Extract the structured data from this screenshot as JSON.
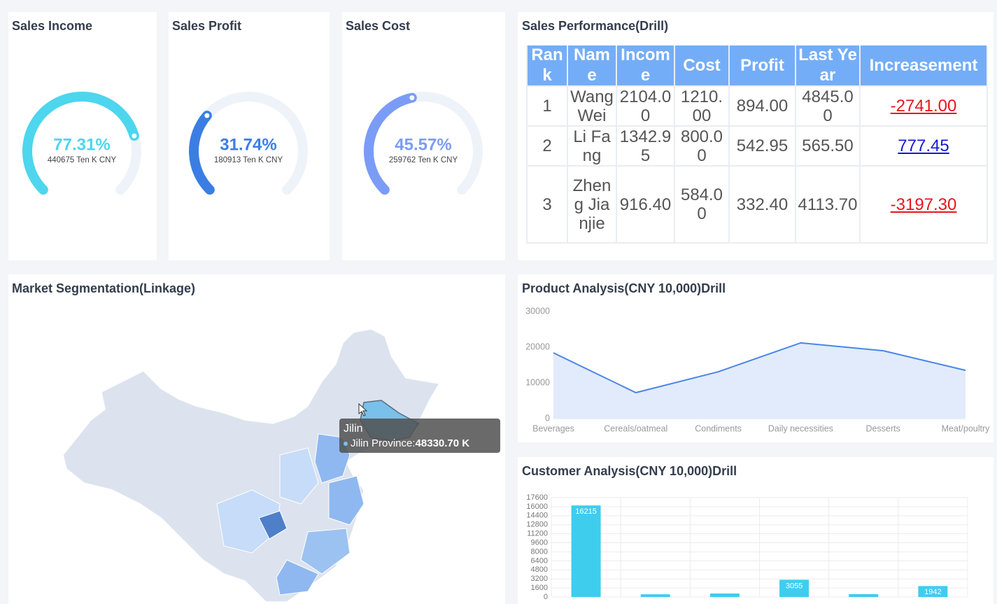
{
  "chart_data": [
    {
      "type": "gauge",
      "title": "Sales Income",
      "value": 77.31,
      "value_label": "77.31%",
      "caption": "440675 Ten K CNY",
      "color": "#4dd6ee",
      "ylim": [
        0,
        100
      ]
    },
    {
      "type": "gauge",
      "title": "Sales Profit",
      "value": 31.74,
      "value_label": "31.74%",
      "caption": "180913 Ten K CNY",
      "color": "#3b7ee3",
      "ylim": [
        0,
        100
      ]
    },
    {
      "type": "gauge",
      "title": "Sales Cost",
      "value": 45.57,
      "value_label": "45.57%",
      "caption": "259762 Ten K CNY",
      "color": "#7b9cf6",
      "ylim": [
        0,
        100
      ]
    },
    {
      "type": "line",
      "title": "Product Analysis(CNY 10,000)Drill",
      "categories": [
        "Beverages",
        "Cereals/oatmeal",
        "Condiments",
        "Daily necessities",
        "Desserts",
        "Meat/poultry"
      ],
      "values": [
        18400,
        7250,
        13100,
        21200,
        19000,
        13500
      ],
      "color": "#4a86e8",
      "area_color": "#e2ebfb",
      "ylim": [
        0,
        30000
      ],
      "yticks": [
        0,
        10000,
        20000,
        30000
      ]
    },
    {
      "type": "bar",
      "title": "Customer Analysis(CNY 10,000)Drill",
      "values": [
        16215,
        480,
        620,
        3055,
        510,
        1942
      ],
      "show_labels": [
        true,
        false,
        false,
        true,
        false,
        true
      ],
      "color": "#3fcdee",
      "ylim": [
        0,
        17600
      ],
      "yticks": [
        0,
        1600,
        3200,
        4800,
        6400,
        8000,
        9600,
        11200,
        12800,
        14400,
        16000,
        17600
      ],
      "grid": true
    }
  ],
  "table": {
    "title": "Sales Performance(Drill)",
    "header": [
      "Rank",
      "Name",
      "Income",
      "Cost",
      "Profit",
      "Last Year",
      "Increasement"
    ],
    "rows": [
      [
        "1",
        "Wang Wei",
        "2104.00",
        "1210.00",
        "894.00",
        "4845.00",
        "-2741.00"
      ],
      [
        "2",
        "Li Fang",
        "1342.95",
        "800.00",
        "542.95",
        "565.50",
        "777.45"
      ],
      [
        "3",
        "Zheng Jianjie",
        "916.40",
        "584.00",
        "332.40",
        "4113.70",
        "-3197.30"
      ]
    ]
  },
  "map": {
    "title": "Market Segmentation(Linkage)",
    "tooltip": {
      "title": "Jilin",
      "label": "Jilin Province:",
      "value": "48330.70 K"
    }
  }
}
